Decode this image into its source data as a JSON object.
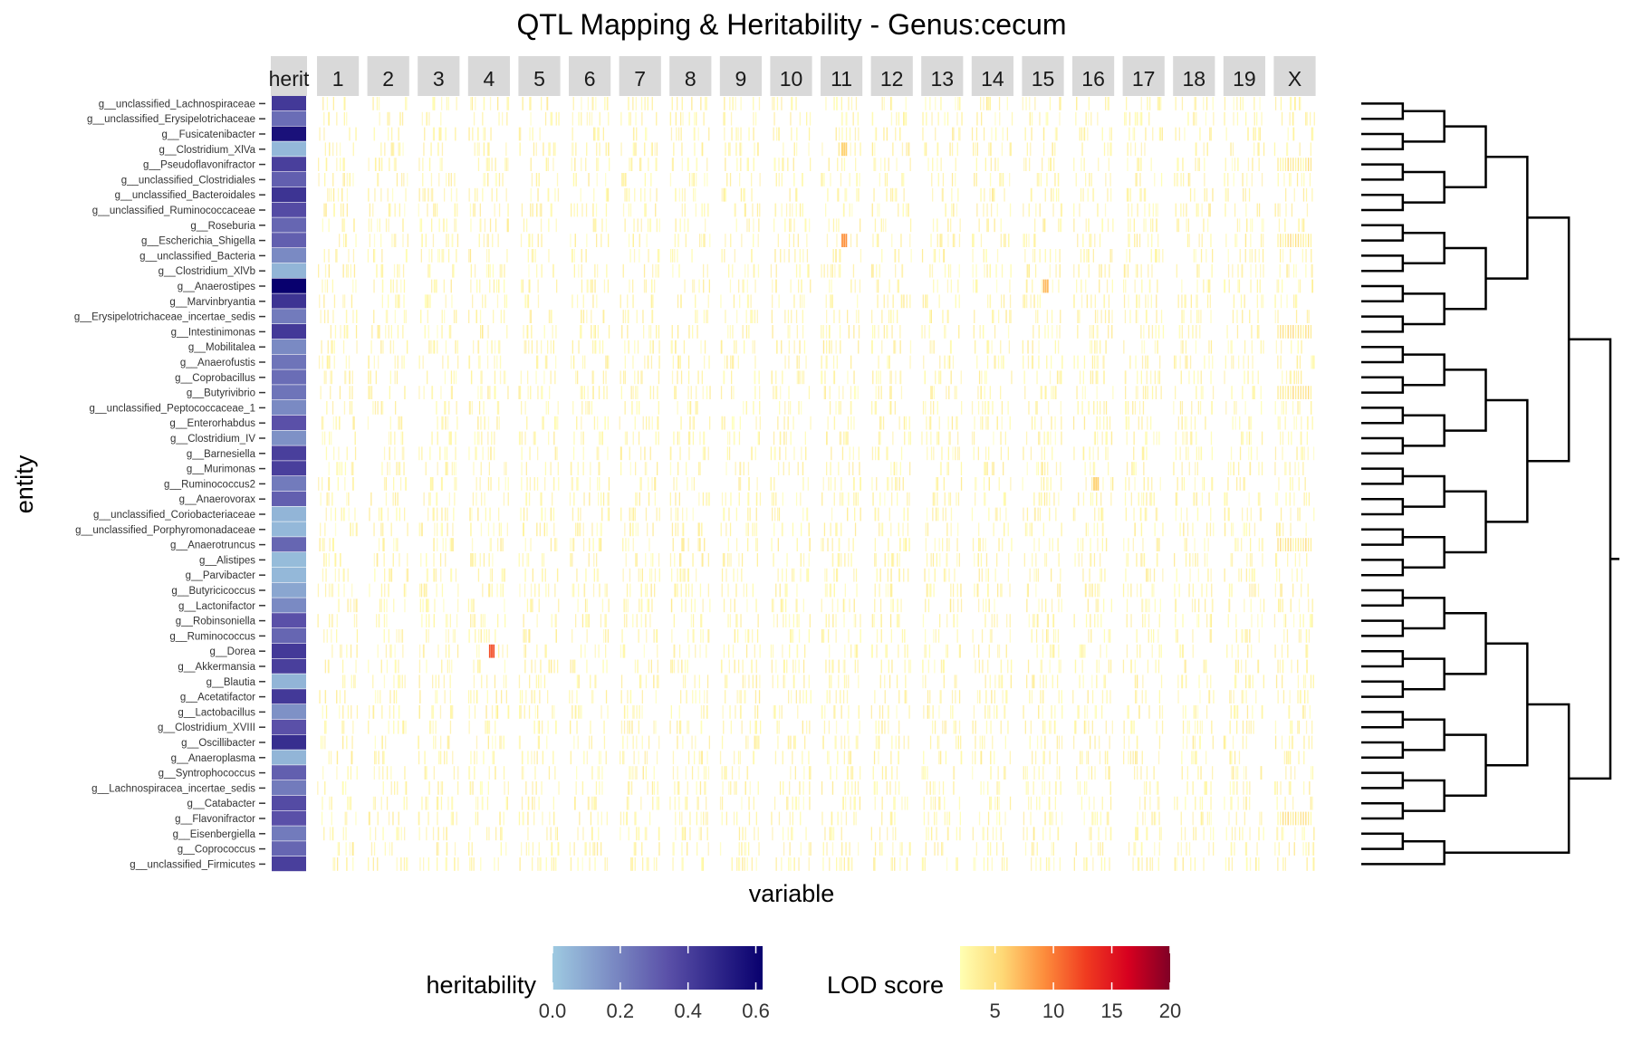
{
  "chart_data": {
    "type": "heatmap",
    "title": "QTL Mapping & Heritability - Genus:cecum",
    "xlabel": "variable",
    "ylabel": "entity",
    "panels": [
      "herit",
      "1",
      "2",
      "3",
      "4",
      "5",
      "6",
      "7",
      "8",
      "9",
      "10",
      "11",
      "12",
      "13",
      "14",
      "15",
      "16",
      "17",
      "18",
      "19",
      "X"
    ],
    "entities": [
      "g__unclassified_Lachnospiraceae",
      "g__unclassified_Erysipelotrichaceae",
      "g__Fusicatenibacter",
      "g__Clostridium_XlVa",
      "g__Pseudoflavonifractor",
      "g__unclassified_Clostridiales",
      "g__unclassified_Bacteroidales",
      "g__unclassified_Ruminococcaceae",
      "g__Roseburia",
      "g__Escherichia_Shigella",
      "g__unclassified_Bacteria",
      "g__Clostridium_XlVb",
      "g__Anaerostipes",
      "g__Marvinbryantia",
      "g__Erysipelotrichaceae_incertae_sedis",
      "g__Intestinimonas",
      "g__Mobilitalea",
      "g__Anaerofustis",
      "g__Coprobacillus",
      "g__Butyrivibrio",
      "g__unclassified_Peptococcaceae_1",
      "g__Enterorhabdus",
      "g__Clostridium_IV",
      "g__Barnesiella",
      "g__Murimonas",
      "g__Ruminococcus2",
      "g__Anaerovorax",
      "g__unclassified_Coriobacteriaceae",
      "g__unclassified_Porphyromonadaceae",
      "g__Anaerotruncus",
      "g__Alistipes",
      "g__Parvibacter",
      "g__Butyricicoccus",
      "g__Lactonifactor",
      "g__Robinsoniella",
      "g__Ruminococcus",
      "g__Dorea",
      "g__Akkermansia",
      "g__Blautia",
      "g__Acetatifactor",
      "g__Lactobacillus",
      "g__Clostridium_XVIII",
      "g__Oscillibacter",
      "g__Anaeroplasma",
      "g__Syntrophococcus",
      "g__Lachnospiracea_incertae_sedis",
      "g__Catabacter",
      "g__Flavonifractor",
      "g__Eisenbergiella",
      "g__Coprococcus",
      "g__unclassified_Firmicutes"
    ],
    "heritability": [
      0.42,
      0.26,
      0.56,
      0.05,
      0.4,
      0.3,
      0.44,
      0.36,
      0.28,
      0.3,
      0.18,
      0.06,
      0.62,
      0.44,
      0.22,
      0.42,
      0.18,
      0.24,
      0.26,
      0.24,
      0.18,
      0.34,
      0.16,
      0.4,
      0.4,
      0.22,
      0.3,
      0.06,
      0.05,
      0.28,
      0.04,
      0.05,
      0.1,
      0.18,
      0.34,
      0.28,
      0.42,
      0.4,
      0.06,
      0.42,
      0.16,
      0.34,
      0.46,
      0.06,
      0.3,
      0.22,
      0.36,
      0.34,
      0.22,
      0.28,
      0.4
    ],
    "heritability_scale": {
      "name": "heritability",
      "min": 0.0,
      "max": 0.62,
      "ticks": [
        "0.0",
        "0.2",
        "0.4",
        "0.6"
      ],
      "low_color": "#9ecae1",
      "mid_color": "#5a50a8",
      "high_color": "#08006e"
    },
    "lod_scale": {
      "name": "LOD score",
      "min": 2,
      "max": 20,
      "ticks": [
        "5",
        "10",
        "15",
        "20"
      ],
      "colors": [
        "#ffffb2",
        "#fed976",
        "#fd8d3c",
        "#f03b20",
        "#d7001f",
        "#800026"
      ]
    },
    "lod_highlights": [
      {
        "entity": "g__Escherichia_Shigella",
        "panel": "11",
        "lod": 9
      },
      {
        "entity": "g__Dorea",
        "panel": "4",
        "lod": 12
      },
      {
        "entity": "g__Anaerostipes",
        "panel": "15",
        "lod": 7
      },
      {
        "entity": "g__Clostridium_XlVa",
        "panel": "11",
        "lod": 6
      },
      {
        "entity": "g__Ruminococcus2",
        "panel": "16",
        "lod": 6
      }
    ],
    "lod_x_chromosome_peaks": [
      "g__Pseudoflavonifractor",
      "g__Escherichia_Shigella",
      "g__Intestinimonas",
      "g__Butyrivibrio",
      "g__Anaerotruncus",
      "g__Flavonifractor"
    ],
    "legend_position": "bottom",
    "has_row_dendrogram": true
  }
}
